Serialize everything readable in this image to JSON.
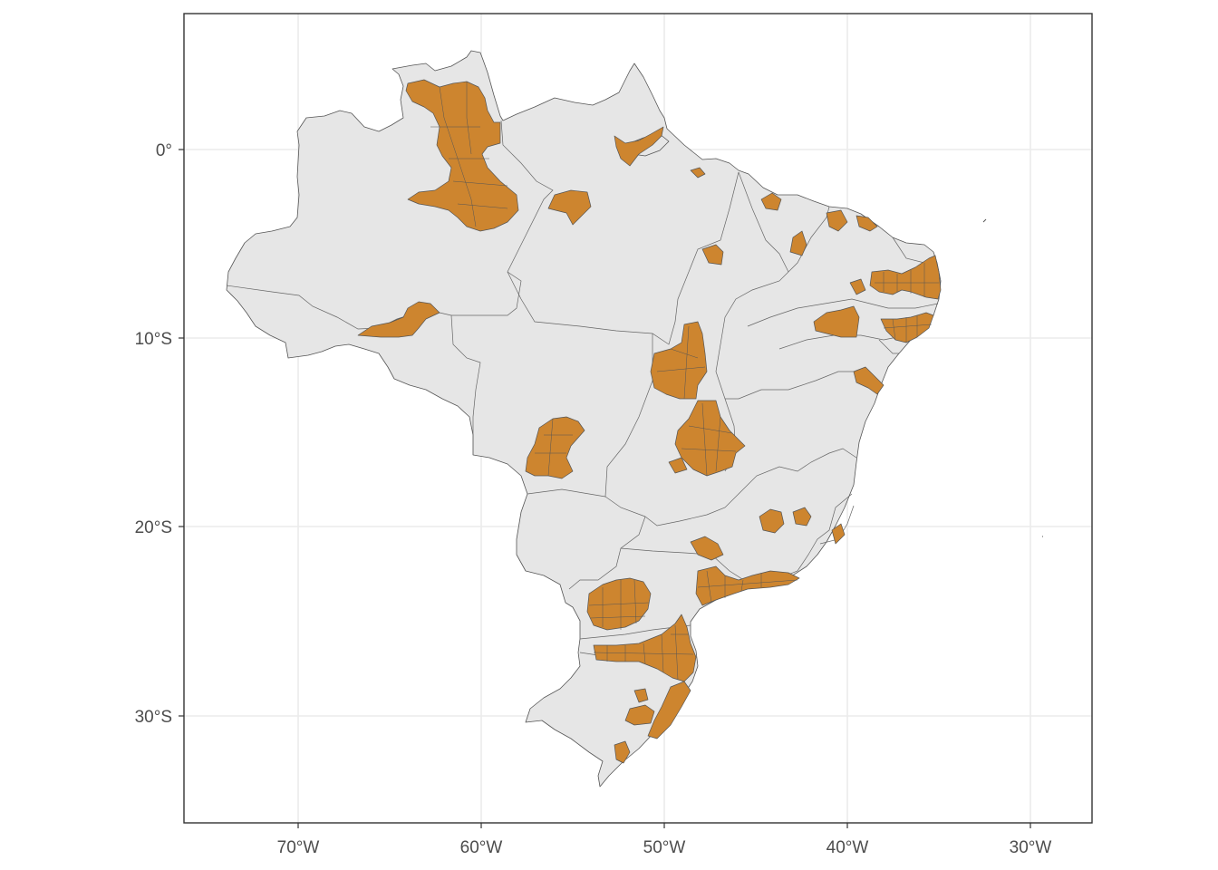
{
  "map": {
    "title": "",
    "x_axis": {
      "labels": [
        "70°W",
        "60°W",
        "50°W",
        "40°W",
        "30°W"
      ],
      "values": [
        -70,
        -60,
        -50,
        -40,
        -30
      ]
    },
    "y_axis": {
      "labels": [
        "0°",
        "10°S",
        "20°S",
        "30°S"
      ],
      "values": [
        0,
        -10,
        -20,
        -30
      ]
    },
    "colors": {
      "background": "#ffffff",
      "land": "#e6e6e6",
      "highlight": "#cd852f",
      "border": "#555555",
      "grid": "#ebebeb"
    },
    "legend": "none",
    "grid": true
  }
}
